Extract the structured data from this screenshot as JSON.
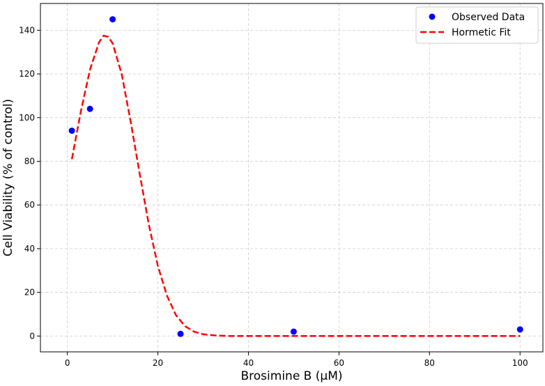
{
  "chart_data": {
    "type": "scatter",
    "xlabel": "Brosimine B (μM)",
    "ylabel": "Cell Viability (% of control)",
    "xlim": [
      -5.95,
      105.05
    ],
    "ylim": [
      -7.25,
      152.25
    ],
    "xticks": [
      0,
      20,
      40,
      60,
      80,
      100
    ],
    "yticks": [
      0,
      20,
      40,
      60,
      80,
      100,
      120,
      140
    ],
    "grid": true,
    "legend_position": "top-right",
    "series": [
      {
        "name": "Observed Data",
        "kind": "points",
        "color": "#0000ff",
        "x": [
          1,
          5,
          10,
          25,
          50,
          100
        ],
        "y": [
          94,
          104,
          145,
          1,
          2,
          3
        ]
      },
      {
        "name": "Hormetic Fit",
        "kind": "line",
        "style": "dashed",
        "color": "#ff0000",
        "x": [
          1,
          3,
          5,
          7,
          8,
          9,
          10,
          12,
          14,
          16,
          18,
          20,
          22,
          24,
          26,
          28,
          30,
          33,
          36,
          40,
          50,
          70,
          100
        ],
        "y": [
          81,
          103,
          122,
          134.5,
          137.5,
          137,
          134,
          120,
          98,
          74,
          51,
          32,
          18.5,
          9.5,
          4.5,
          2,
          0.8,
          0.2,
          0,
          0,
          0,
          0,
          0
        ]
      }
    ]
  }
}
